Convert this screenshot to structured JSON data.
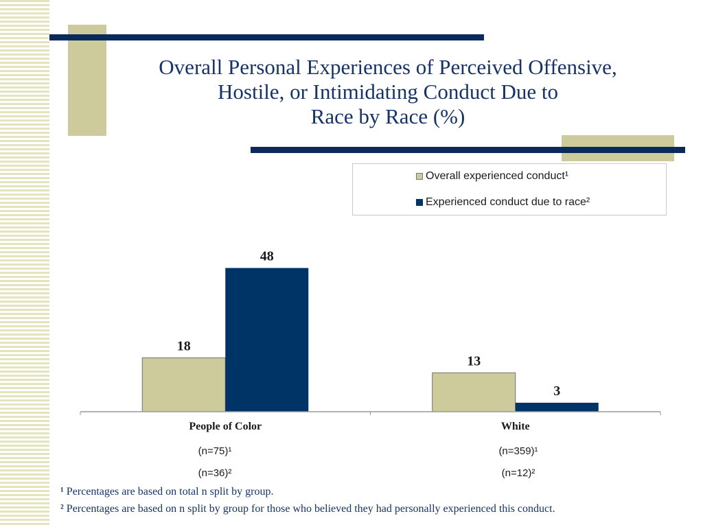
{
  "title_lines": [
    "Overall Personal Experiences of Perceived Offensive,",
    "Hostile, or Intimidating Conduct Due to",
    "Race by Race (%)"
  ],
  "colors": {
    "overall": "#cdcb9b",
    "race": "#003366",
    "accent_khaki": "#cdcb9b",
    "accent_navy": "#0b2a5b",
    "text_navy": "#14326b"
  },
  "chart_data": {
    "type": "bar",
    "categories": [
      "People of Color",
      "White"
    ],
    "series": [
      {
        "name": "Overall experienced conduct¹",
        "values": [
          18,
          13
        ]
      },
      {
        "name": "Experienced conduct due to race²",
        "values": [
          48,
          3
        ]
      }
    ],
    "ylim": [
      0,
      55
    ],
    "grid": false,
    "legend_position": "top-right",
    "data_labels": true
  },
  "group_notes": [
    {
      "n1": "(n=75)¹",
      "n2": "(n=36)²"
    },
    {
      "n1": "(n=359)¹",
      "n2": "(n=12)²"
    }
  ],
  "footnotes": [
    {
      "mark": "¹",
      "text": " Percentages are based on total n split by group."
    },
    {
      "mark": "²",
      "text": " Percentages are based on n split by group for those who believed they had  personally experienced this conduct."
    }
  ]
}
